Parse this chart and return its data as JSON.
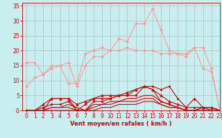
{
  "background_color": "#c8eef0",
  "grid_color": "#b0b0b0",
  "xlabel": "Vent moyen/en rafales ( km/h )",
  "xlabel_color": "#cc0000",
  "tick_color": "#cc0000",
  "xlim": [
    -0.5,
    23
  ],
  "ylim": [
    0,
    36
  ],
  "yticks": [
    0,
    5,
    10,
    15,
    20,
    25,
    30,
    35
  ],
  "xticks": [
    0,
    1,
    2,
    3,
    4,
    5,
    6,
    7,
    8,
    9,
    10,
    11,
    12,
    13,
    14,
    15,
    16,
    17,
    18,
    19,
    20,
    21,
    22,
    23
  ],
  "series": [
    {
      "y": [
        8,
        11,
        12,
        15,
        15,
        9,
        9,
        19,
        20,
        21,
        20,
        24,
        23,
        29,
        29,
        34,
        27,
        20,
        19,
        18,
        21,
        14,
        13,
        0
      ],
      "color": "#ff9999",
      "linewidth": 0.8,
      "marker": "D",
      "markersize": 2.0
    },
    {
      "y": [
        16,
        16,
        12,
        14,
        15,
        16,
        8,
        15,
        18,
        18,
        20,
        20,
        21,
        20,
        20,
        20,
        19,
        19,
        19,
        19,
        21,
        21,
        14,
        0
      ],
      "color": "#ff9999",
      "linewidth": 0.8,
      "marker": "D",
      "markersize": 2.0
    },
    {
      "y": [
        0,
        0,
        0,
        4,
        4,
        4,
        0,
        2,
        4,
        4,
        4,
        5,
        5,
        5,
        8,
        8,
        7,
        8,
        4,
        1,
        1,
        1,
        1,
        0
      ],
      "color": "#cc0000",
      "linewidth": 0.8,
      "marker": "s",
      "markersize": 2.0
    },
    {
      "y": [
        0,
        0,
        2,
        4,
        4,
        4,
        2,
        3,
        4,
        5,
        5,
        5,
        6,
        7,
        8,
        7,
        5,
        3,
        2,
        1,
        4,
        1,
        1,
        0
      ],
      "color": "#cc0000",
      "linewidth": 0.8,
      "marker": "^",
      "markersize": 2.5
    },
    {
      "y": [
        0,
        0,
        1,
        2,
        2,
        3,
        0,
        0,
        3,
        3,
        4,
        5,
        5,
        7,
        8,
        7,
        3,
        2,
        1,
        0,
        0,
        1,
        1,
        0
      ],
      "color": "#cc0000",
      "linewidth": 0.8,
      "marker": "s",
      "markersize": 1.5
    },
    {
      "y": [
        0,
        0,
        0,
        1,
        1,
        2,
        1,
        0,
        2,
        2,
        3,
        3,
        4,
        4,
        5,
        5,
        3,
        2,
        1,
        0,
        0,
        1,
        0,
        0
      ],
      "color": "#cc0000",
      "linewidth": 0.8,
      "marker": null,
      "markersize": 0
    },
    {
      "y": [
        0,
        0,
        0,
        1,
        1,
        1,
        0,
        0,
        1,
        2,
        2,
        3,
        3,
        3,
        4,
        4,
        2,
        1,
        1,
        0,
        0,
        0,
        0,
        0
      ],
      "color": "#cc0000",
      "linewidth": 0.8,
      "marker": null,
      "markersize": 0
    },
    {
      "y": [
        0,
        0,
        0,
        0,
        0,
        0,
        0,
        0,
        0,
        1,
        1,
        2,
        2,
        2,
        3,
        3,
        2,
        1,
        1,
        0,
        0,
        0,
        0,
        0
      ],
      "color": "#cc0000",
      "linewidth": 0.8,
      "marker": null,
      "markersize": 0
    }
  ]
}
